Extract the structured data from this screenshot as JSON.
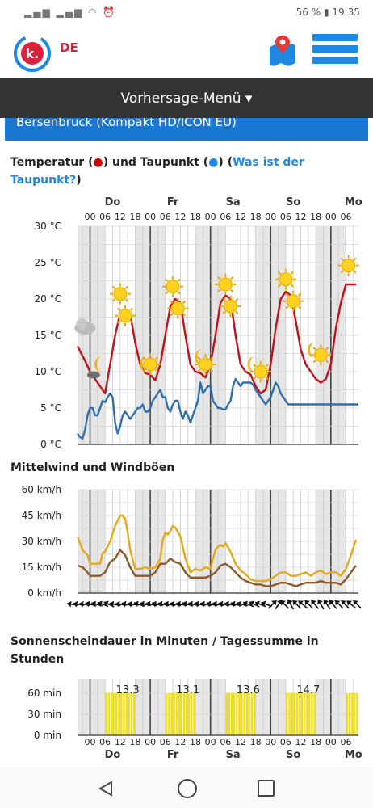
{
  "status": {
    "battery": "56 %",
    "time": "19:35"
  },
  "app": {
    "brand": "DE",
    "menu_label": "Vorhersage-Menü",
    "location_header": "Bersenbrück (Kompakt HD/ICON EU)",
    "accent": "#1e88e5",
    "brand_color": "#d9223b"
  },
  "temp_section": {
    "title_a": "Temperatur (",
    "title_b": ") und Taupunkt (",
    "title_c": ") (",
    "link": "Was ist der Taupunkt?",
    "title_d": ")"
  },
  "wind_section": {
    "title": "Mittelwind und Windböen"
  },
  "sun_section": {
    "title": "Sonnenscheindauer in Minuten / Tagessumme in Stunden"
  },
  "days": [
    "Do",
    "Fr",
    "Sa",
    "So",
    "Mo"
  ],
  "hour_labels": [
    "00",
    "06",
    "12",
    "18"
  ],
  "chart_data": [
    {
      "type": "line",
      "title": "Temperatur und Taupunkt",
      "yunit": "°C",
      "ylim": [
        0,
        30
      ],
      "yticks": [
        "0 °C",
        "5 °C",
        "10 °C",
        "15 °C",
        "20 °C",
        "25 °C",
        "30 °C"
      ],
      "x_unit": "hours from Do 00:00",
      "series": [
        {
          "name": "Temperatur",
          "color": "#c0101a",
          "x": [
            -5,
            -2,
            0,
            3,
            6,
            8,
            10,
            12,
            14,
            16,
            18,
            20,
            22,
            24,
            26,
            28,
            30,
            32,
            34,
            36,
            38,
            40,
            42,
            44,
            46,
            48,
            50,
            52,
            54,
            56,
            58,
            60,
            62,
            64,
            66,
            68,
            70,
            72,
            74,
            76,
            78,
            80,
            82,
            84,
            86,
            88,
            90,
            92,
            94,
            96,
            98,
            100,
            102,
            104,
            106,
            108,
            110,
            112,
            114,
            116,
            118,
            120,
            122,
            124
          ],
          "y": [
            13.5,
            11.5,
            10,
            8.5,
            7,
            11,
            15,
            18,
            18.5,
            18,
            14,
            11,
            9.8,
            9.6,
            8.8,
            11,
            15,
            19,
            20,
            19.5,
            15,
            11,
            10,
            9.8,
            9.2,
            11,
            15,
            19.5,
            20.5,
            20,
            15,
            11,
            10,
            9.6,
            8,
            7,
            7.5,
            11,
            16,
            20,
            21,
            20.5,
            17,
            13,
            11,
            10,
            9,
            8.5,
            9,
            11,
            16,
            19.5,
            22,
            22,
            22,
            22,
            22,
            22,
            22,
            22,
            22,
            22,
            22,
            22
          ]
        },
        {
          "name": "Taupunkt",
          "color": "#2e6fad",
          "x": [
            -5,
            -4,
            -3,
            -2,
            -1,
            0,
            1,
            2,
            3,
            4,
            5,
            6,
            7,
            8,
            9,
            10,
            11,
            12,
            13,
            14,
            15,
            16,
            17,
            18,
            19,
            20,
            21,
            22,
            23,
            24,
            25,
            26,
            27,
            28,
            29,
            30,
            31,
            32,
            33,
            34,
            35,
            36,
            37,
            38,
            39,
            40,
            41,
            42,
            43,
            44,
            45,
            46,
            47,
            48,
            49,
            50,
            51,
            52,
            53,
            54,
            55,
            56,
            57,
            58,
            59,
            60,
            61,
            62,
            63,
            64,
            65,
            66,
            67,
            68,
            69,
            70,
            71,
            72,
            73,
            74,
            75,
            76,
            77,
            78,
            79,
            80,
            81,
            82,
            83,
            84,
            85,
            86,
            87,
            88,
            89,
            90,
            91,
            92,
            93,
            94,
            95,
            96,
            97,
            98,
            99,
            100,
            101,
            102,
            103,
            104,
            105,
            106,
            107
          ],
          "y": [
            1.5,
            1,
            0.8,
            2,
            4,
            5,
            5,
            4,
            4,
            5,
            6,
            5.8,
            6.5,
            7,
            6.5,
            3,
            1.5,
            2.5,
            4,
            4.5,
            4,
            3.5,
            4,
            4.5,
            5,
            5,
            5.5,
            4.5,
            4.5,
            5,
            6,
            6.5,
            7,
            7.5,
            6.5,
            6.5,
            5,
            4.5,
            5.5,
            6,
            6,
            4.5,
            3.5,
            4.5,
            4,
            3,
            4,
            5,
            6,
            8.5,
            7,
            7.5,
            8,
            8,
            6,
            5.5,
            5,
            5,
            4.8,
            4.8,
            5.5,
            6,
            8,
            9,
            8.5,
            8,
            8.5,
            8.5,
            8.5,
            8.5,
            8.2,
            7.5,
            7,
            6.5,
            6,
            5.5,
            6,
            6.5,
            7.5,
            8.5,
            8,
            7,
            6.5,
            6,
            5.5,
            5.5,
            5.5,
            5.5,
            5.5,
            5.5,
            5.5,
            5.5,
            5.5,
            5.5,
            5.5,
            5.5,
            5.5,
            5.5,
            5.5,
            5.5,
            5.5,
            5.5,
            5.5,
            5.5,
            5.5,
            5.5,
            5.5,
            5.5,
            5.5,
            5.5,
            5.5,
            5.5,
            5.5
          ]
        }
      ],
      "weather_icons": [
        {
          "x": -2,
          "temp": 16,
          "icon": "cloud-icon"
        },
        {
          "x": 4,
          "temp": 11,
          "icon": "moon-cloud-icon"
        },
        {
          "x": 12,
          "temp": 20.7,
          "icon": "sun-icon"
        },
        {
          "x": 14,
          "temp": 17.7,
          "icon": "sun-icon"
        },
        {
          "x": 22,
          "temp": 11,
          "icon": "moon-icon"
        },
        {
          "x": 24,
          "temp": 11,
          "icon": "sun-icon"
        },
        {
          "x": 33,
          "temp": 21.7,
          "icon": "sun-icon"
        },
        {
          "x": 35,
          "temp": 18.7,
          "icon": "sun-icon"
        },
        {
          "x": 44,
          "temp": 12,
          "icon": "moon-icon"
        },
        {
          "x": 46,
          "temp": 11,
          "icon": "sun-icon"
        },
        {
          "x": 54,
          "temp": 22,
          "icon": "sun-icon"
        },
        {
          "x": 56,
          "temp": 19,
          "icon": "sun-icon"
        },
        {
          "x": 65,
          "temp": 11,
          "icon": "moon-icon"
        },
        {
          "x": 68,
          "temp": 10,
          "icon": "sun-icon"
        },
        {
          "x": 78,
          "temp": 22.7,
          "icon": "sun-icon"
        },
        {
          "x": 81,
          "temp": 19.7,
          "icon": "sun-icon"
        },
        {
          "x": 89,
          "temp": 13,
          "icon": "moon-icon"
        },
        {
          "x": 92,
          "temp": 12.3,
          "icon": "sun-icon"
        },
        {
          "x": 103,
          "temp": 24.6,
          "icon": "sun-icon"
        }
      ]
    },
    {
      "type": "line",
      "title": "Mittelwind und Windböen",
      "ylim": [
        0,
        60
      ],
      "yticks": [
        "0 km/h",
        "15 km/h",
        "30 km/h",
        "45 km/h",
        "60 km/h"
      ],
      "x_unit": "hours from Do 00:00",
      "series": [
        {
          "name": "Windböen",
          "color": "#e6a817",
          "x": [
            -5,
            -3,
            -1,
            0,
            2,
            4,
            5,
            6,
            8,
            10,
            11,
            12,
            13,
            14,
            15,
            16,
            18,
            20,
            22,
            24,
            26,
            28,
            29,
            30,
            31,
            32,
            33,
            34,
            36,
            38,
            40,
            42,
            44,
            46,
            48,
            49,
            50,
            51,
            52,
            53,
            54,
            56,
            58,
            60,
            62,
            64,
            66,
            68,
            70,
            72,
            74,
            76,
            78,
            80,
            82,
            84,
            86,
            88,
            90,
            92,
            94,
            96,
            98,
            100,
            102,
            104,
            106
          ],
          "y": [
            33,
            25,
            22,
            17,
            17,
            17,
            23,
            24,
            30,
            39,
            42,
            45,
            45,
            43,
            35,
            25,
            14,
            14,
            15,
            14,
            15,
            20,
            31,
            35,
            34,
            36,
            39,
            38,
            33,
            20,
            12,
            14,
            13,
            15,
            14,
            20,
            25,
            27,
            28,
            27,
            29,
            24,
            17,
            13,
            11,
            8,
            7,
            7,
            7,
            8,
            10,
            12,
            12,
            10,
            10,
            11,
            12,
            10,
            12,
            13,
            11,
            12,
            12,
            10,
            14,
            22,
            31
          ]
        },
        {
          "name": "Mittelwind",
          "color": "#8b5a2b",
          "x": [
            -5,
            -3,
            -1,
            0,
            2,
            4,
            6,
            8,
            10,
            12,
            14,
            16,
            18,
            20,
            22,
            24,
            26,
            28,
            30,
            32,
            34,
            36,
            38,
            40,
            42,
            44,
            46,
            48,
            50,
            52,
            54,
            56,
            58,
            60,
            62,
            64,
            66,
            68,
            70,
            72,
            74,
            76,
            78,
            80,
            82,
            84,
            86,
            88,
            90,
            92,
            94,
            96,
            98,
            100,
            102,
            104,
            106
          ],
          "y": [
            16,
            15,
            12,
            10,
            10,
            10,
            12,
            18,
            20,
            25,
            22,
            15,
            10,
            10,
            10,
            10,
            12,
            17,
            17,
            20,
            18,
            17,
            12,
            9,
            9,
            9,
            9,
            10,
            12,
            16,
            17,
            15,
            12,
            9,
            7,
            6,
            5,
            5,
            4,
            4,
            5,
            6,
            6,
            5,
            4,
            5,
            6,
            6,
            6,
            7,
            6,
            6,
            6,
            5,
            8,
            12,
            16
          ]
        }
      ],
      "wind_dir_rotations": [
        8,
        8,
        8,
        15,
        15,
        20,
        25,
        12,
        8,
        12,
        8,
        18,
        12,
        12,
        12,
        12,
        12,
        12,
        12,
        15,
        12,
        12,
        12,
        12,
        12,
        12,
        12,
        15,
        15,
        22,
        25,
        22,
        20,
        135,
        125,
        45,
        60,
        45,
        40,
        45,
        50,
        60,
        55,
        50,
        45,
        45,
        40,
        45
      ]
    },
    {
      "type": "bar",
      "title": "Sonnenscheindauer in Minuten / Tagessumme in Stunden",
      "ylim": [
        0,
        60
      ],
      "yticks": [
        "0 min",
        "30 min",
        "60 min"
      ],
      "x_unit": "hours from Do 00:00",
      "daily_totals": [
        "13.3",
        "13.1",
        "13.6",
        "14.7"
      ],
      "sunny_periods": [
        {
          "start": 6,
          "end": 18,
          "minutes": 60
        },
        {
          "start": 30,
          "end": 42,
          "minutes": 60
        },
        {
          "start": 54,
          "end": 66,
          "minutes": 60
        },
        {
          "start": 78,
          "end": 90,
          "minutes": 60
        },
        {
          "start": 102,
          "end": 108,
          "minutes": 60
        }
      ]
    }
  ]
}
